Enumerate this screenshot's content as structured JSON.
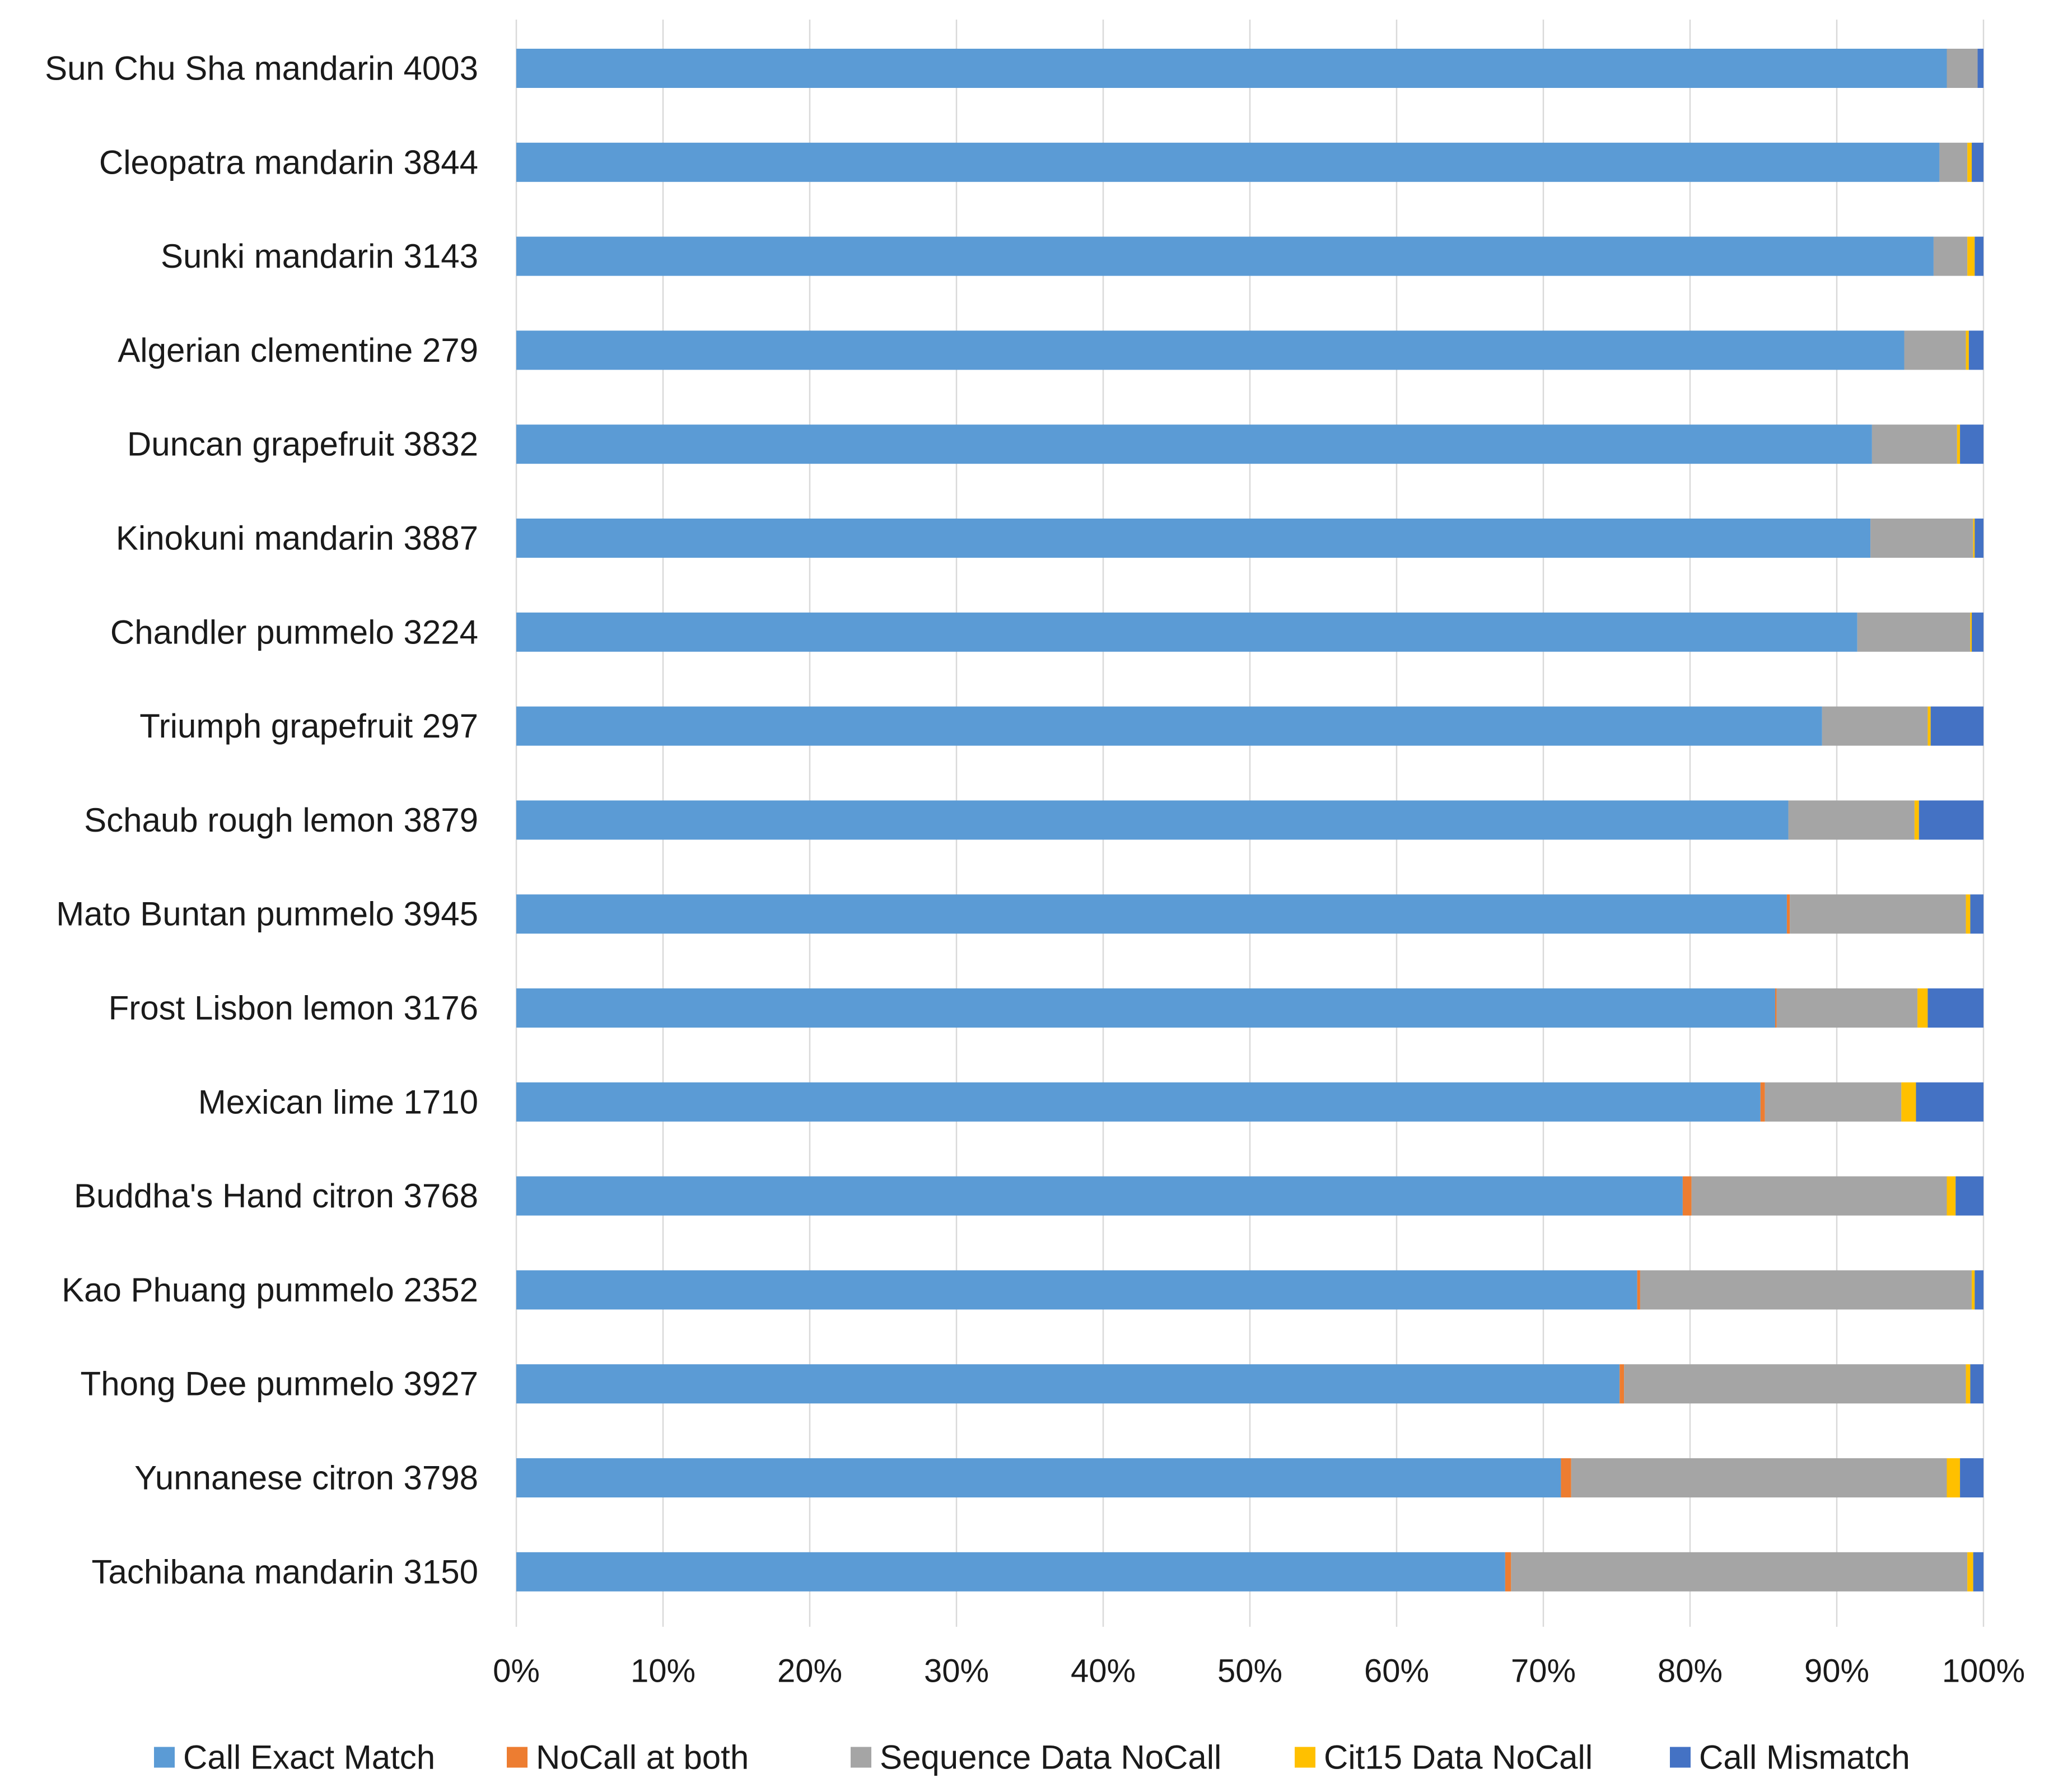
{
  "chart_data": {
    "type": "bar",
    "orientation": "horizontal",
    "stacking": "percent",
    "categories": [
      "Sun Chu Sha mandarin 4003",
      "Cleopatra mandarin 3844",
      "Sunki mandarin 3143",
      "Algerian clementine 279",
      "Duncan grapefruit 3832",
      "Kinokuni mandarin 3887",
      "Chandler pummelo 3224",
      "Triumph grapefruit 297",
      "Schaub rough lemon 3879",
      "Mato Buntan pummelo 3945",
      "Frost Lisbon lemon 3176",
      "Mexican lime 1710",
      "Buddha's Hand citron 3768",
      "Kao Phuang pummelo 2352",
      "Thong Dee pummelo 3927",
      "Yunnanese citron 3798",
      "Tachibana mandarin 3150"
    ],
    "series": [
      {
        "name": "Call Exact Match",
        "color": "#5B9BD5",
        "values": [
          97.5,
          97.0,
          96.6,
          94.6,
          92.4,
          92.3,
          91.4,
          89.0,
          86.7,
          86.6,
          85.8,
          84.8,
          79.5,
          76.4,
          75.2,
          71.2,
          67.4
        ]
      },
      {
        "name": "NoCall at both",
        "color": "#ED7D31",
        "values": [
          0.0,
          0.0,
          0.0,
          0.0,
          0.0,
          0.0,
          0.0,
          0.0,
          0.0,
          0.2,
          0.1,
          0.3,
          0.6,
          0.2,
          0.3,
          0.7,
          0.4
        ]
      },
      {
        "name": "Sequence Data NoCall",
        "color": "#A5A5A5",
        "values": [
          2.1,
          1.9,
          2.3,
          4.2,
          5.8,
          7.0,
          7.7,
          7.2,
          8.6,
          12.0,
          9.6,
          9.3,
          17.4,
          22.6,
          23.3,
          25.6,
          31.1
        ]
      },
      {
        "name": "Cit15 Data NoCall",
        "color": "#FFC000",
        "values": [
          0.0,
          0.3,
          0.5,
          0.2,
          0.2,
          0.1,
          0.1,
          0.2,
          0.3,
          0.3,
          0.7,
          1.0,
          0.6,
          0.2,
          0.3,
          0.9,
          0.4
        ]
      },
      {
        "name": "Call Mismatch",
        "color": "#4472C4",
        "values": [
          0.4,
          0.8,
          0.6,
          1.0,
          1.6,
          0.6,
          0.8,
          3.6,
          4.4,
          0.9,
          3.8,
          4.6,
          1.9,
          0.6,
          0.9,
          1.6,
          0.7
        ]
      }
    ],
    "xlim": [
      0,
      100
    ],
    "xticks": [
      0,
      10,
      20,
      30,
      40,
      50,
      60,
      70,
      80,
      90,
      100
    ],
    "xtick_labels": [
      "0%",
      "10%",
      "20%",
      "30%",
      "40%",
      "50%",
      "60%",
      "70%",
      "80%",
      "90%",
      "100%"
    ],
    "grid": true,
    "legend_position": "bottom"
  }
}
